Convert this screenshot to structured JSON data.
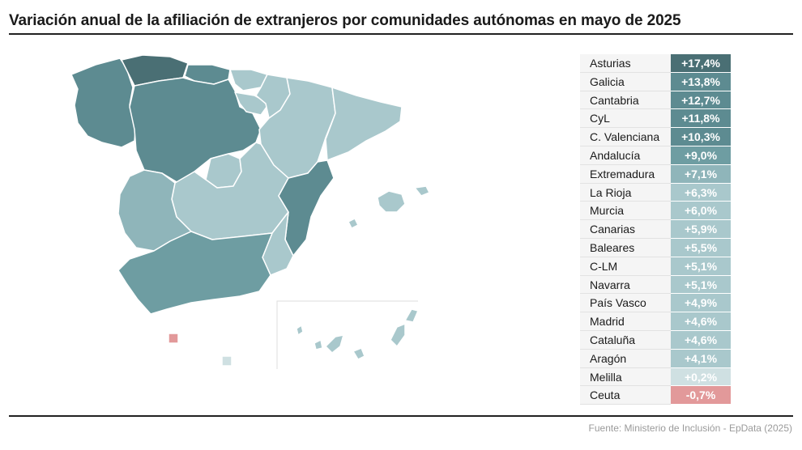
{
  "title": "Variación anual de la afiliación de extranjeros por comunidades autónomas en mayo de 2025",
  "source": "Fuente: Ministerio de Inclusión - EpData (2025)",
  "colors": {
    "highest": "#4a6f74",
    "very_high": "#5d8b91",
    "high": "#6e9da2",
    "medium": "#8fb5ba",
    "low": "#a9c8cc",
    "lowest": "#cfe0e2",
    "negative": "#e2999a"
  },
  "chart_data": {
    "type": "table",
    "rows": [
      {
        "region": "Asturias",
        "label": "+17,4%",
        "value": 17.4
      },
      {
        "region": "Galicia",
        "label": "+13,8%",
        "value": 13.8
      },
      {
        "region": "Cantabria",
        "label": "+12,7%",
        "value": 12.7
      },
      {
        "region": "CyL",
        "label": "+11,8%",
        "value": 11.8
      },
      {
        "region": "C. Valenciana",
        "label": "+10,3%",
        "value": 10.3
      },
      {
        "region": "Andalucía",
        "label": "+9,0%",
        "value": 9.0
      },
      {
        "region": "Extremadura",
        "label": "+7,1%",
        "value": 7.1
      },
      {
        "region": "La Rioja",
        "label": "+6,3%",
        "value": 6.3
      },
      {
        "region": "Murcia",
        "label": "+6,0%",
        "value": 6.0
      },
      {
        "region": "Canarias",
        "label": "+5,9%",
        "value": 5.9
      },
      {
        "region": "Baleares",
        "label": "+5,5%",
        "value": 5.5
      },
      {
        "region": "C-LM",
        "label": "+5,1%",
        "value": 5.1
      },
      {
        "region": "Navarra",
        "label": "+5,1%",
        "value": 5.1
      },
      {
        "region": "País Vasco",
        "label": "+4,9%",
        "value": 4.9
      },
      {
        "region": "Madrid",
        "label": "+4,6%",
        "value": 4.6
      },
      {
        "region": "Cataluña",
        "label": "+4,6%",
        "value": 4.6
      },
      {
        "region": "Aragón",
        "label": "+4,1%",
        "value": 4.1
      },
      {
        "region": "Melilla",
        "label": "+0,2%",
        "value": 0.2
      },
      {
        "region": "Ceuta",
        "label": "-0,7%",
        "value": -0.7
      }
    ]
  }
}
